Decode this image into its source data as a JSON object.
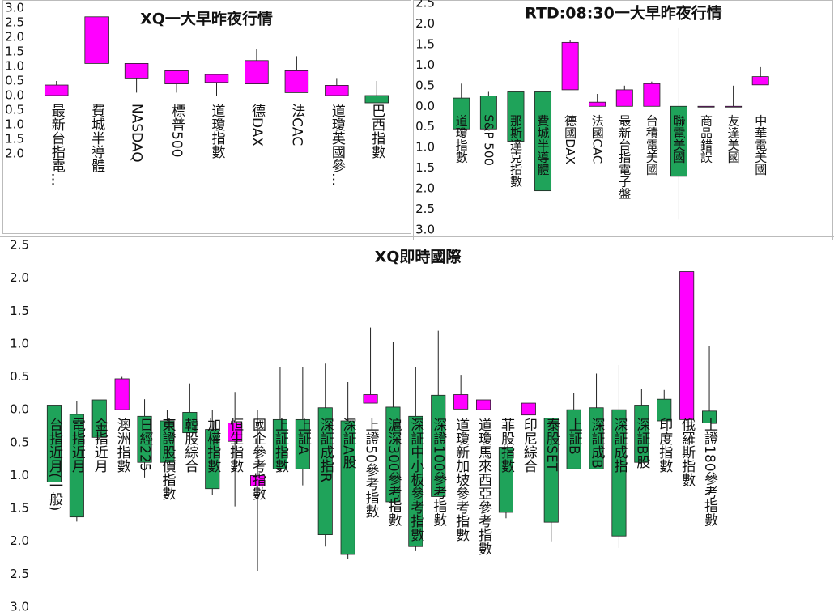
{
  "chart_data": [
    {
      "type": "candlestick",
      "title": "XQ一大早昨夜行情",
      "categories": [
        "最新台指電…",
        "費城半導體",
        "NASDAQ",
        "標普500",
        "道瓊指數",
        "德DAX",
        "法CAC",
        "道瓊英國參…",
        "巴西指數"
      ],
      "open": [
        0,
        1.1,
        0.6,
        0.4,
        0.45,
        0.4,
        0.1,
        0,
        0
      ],
      "close": [
        0.36,
        2.7,
        1.1,
        0.85,
        0.72,
        1.2,
        0.85,
        0.35,
        -0.25
      ],
      "high": [
        0.5,
        2.7,
        1.1,
        0.85,
        0.75,
        1.6,
        1.35,
        0.6,
        0.5
      ],
      "low": [
        0,
        1.1,
        0.1,
        0.1,
        0,
        0.4,
        0.1,
        0,
        -0.25
      ],
      "up_color": "#ff00ff",
      "down_color": "#1fa35a",
      "negative_label_color": "#e00000",
      "ylim": [
        -2,
        3
      ],
      "yticks": [
        {
          "value": -2,
          "label": "2.0"
        },
        {
          "value": -1.5,
          "label": "1.5"
        },
        {
          "value": -1,
          "label": "1.0"
        },
        {
          "value": -0.5,
          "label": "0.5"
        },
        {
          "value": 0,
          "label": "0.0"
        },
        0.5,
        {
          "value": 1,
          "label": "1.0"
        },
        1.5,
        {
          "value": 2,
          "label": "2.0"
        },
        2.5,
        {
          "value": 3,
          "label": "3.0"
        }
      ]
    },
    {
      "type": "candlestick",
      "title": "RTD:08:30一大早昨夜行情",
      "categories": [
        "道瓊指數",
        "S&P 500",
        "那斯達克指數",
        "費城半導體",
        "德國DAX",
        "法國CAC",
        "最新台指電子盤",
        "台積電美國",
        "聯電美國",
        "商品錯誤",
        "友達美國",
        "中華電美國"
      ],
      "open": [
        0.2,
        0.25,
        0.35,
        0.35,
        0.4,
        0,
        0,
        0,
        0,
        0,
        0,
        0.52
      ],
      "close": [
        -0.55,
        -0.55,
        -0.85,
        -2.05,
        1.55,
        0.1,
        0.4,
        0.55,
        -1.7,
        0,
        0,
        0.72
      ],
      "high": [
        0.55,
        0.35,
        0.35,
        0.35,
        1.6,
        0.3,
        0.5,
        0.6,
        1.9,
        0,
        0.5,
        0.95
      ],
      "low": [
        -0.55,
        -0.55,
        -0.85,
        -2.05,
        0.4,
        0,
        0,
        0,
        -2.75,
        0,
        0,
        0.52
      ],
      "up_color": "#ff00ff",
      "down_color": "#1fa35a",
      "negative_label_color": "#e00000",
      "ylim": [
        -3,
        2.5
      ],
      "yticks": [
        {
          "value": -3,
          "label": "3.0"
        },
        {
          "value": -2.5,
          "label": "2.5"
        },
        {
          "value": -2,
          "label": "2.0"
        },
        {
          "value": -1.5,
          "label": "1.5"
        },
        {
          "value": -1,
          "label": "1.0"
        },
        {
          "value": -0.5,
          "label": "0.5"
        },
        {
          "value": 0,
          "label": "0.0"
        },
        0.5,
        {
          "value": 1,
          "label": "1.0"
        },
        1.5,
        {
          "value": 2,
          "label": "2.0"
        },
        2.5
      ]
    },
    {
      "type": "candlestick",
      "title": "XQ即時國際",
      "categories": [
        "台指近月(一般)",
        "電指近月",
        "金指近月",
        "澳洲指數",
        "日經225",
        "東證股價指數",
        "韓股綜合",
        "加權指數",
        "恒生指數",
        "國企參考指數",
        "上証指數",
        "上証A",
        "深証成指R",
        "深証A股",
        "上證50參考指數",
        "滬深300參考指數",
        "深証中小板參考指數",
        "深證100參考指數",
        "道瓊新加坡參考指數",
        "道瓊馬來西亞參考指數",
        "菲股指數",
        "印尼綜合",
        "泰股SET",
        "上証B",
        "深証成B",
        "深証成指",
        "深証B股",
        "印度指數",
        "俄羅斯指數",
        "上證180參考指數"
      ],
      "open": [
        0.07,
        -0.07,
        0.15,
        0,
        -0.1,
        -0.17,
        -0.04,
        -0.3,
        -0.48,
        -1.16,
        -0.15,
        -0.15,
        0.03,
        -0.17,
        0.1,
        0.04,
        -0.1,
        0.22,
        0.01,
        0,
        -0.57,
        -0.08,
        -0.13,
        0,
        0.03,
        0,
        0.07,
        0.16,
        -0.15,
        -0.02
      ],
      "close": [
        -1.1,
        -1.63,
        -0.42,
        0.47,
        -0.8,
        -0.8,
        -0.35,
        -1.2,
        -0.2,
        -1.0,
        -0.9,
        -0.9,
        -1.9,
        -2.2,
        0.23,
        -1.4,
        -2.08,
        -1.32,
        0.23,
        0.15,
        -1.56,
        0.1,
        -1.71,
        -0.9,
        -0.9,
        -1.92,
        -0.8,
        -0.17,
        2.1,
        -0.2
      ],
      "high": [
        0.07,
        0.13,
        0.15,
        0.5,
        0.16,
        0,
        0.4,
        0,
        0.27,
        0,
        0.65,
        0.65,
        0.7,
        0.42,
        1.25,
        1.03,
        0.65,
        1.2,
        0.53,
        0.15,
        -0.57,
        0.1,
        -0.13,
        0.25,
        0.55,
        0.68,
        0.32,
        0.3,
        2.1,
        0.97
      ],
      "low": [
        -1.1,
        -1.7,
        -0.42,
        0,
        -1.03,
        -0.8,
        -0.35,
        -1.3,
        -1.47,
        -2.45,
        -0.95,
        -1.15,
        -2.08,
        -2.27,
        0.1,
        -1.4,
        -2.15,
        -1.32,
        0.01,
        0,
        -1.65,
        -0.08,
        -2.0,
        -0.9,
        -0.9,
        -2.1,
        -0.8,
        -0.17,
        -0.15,
        -0.2
      ],
      "up_color": "#ff00ff",
      "down_color": "#1fa35a",
      "negative_label_color": "#e00000",
      "ylim": [
        -3,
        2.5
      ],
      "yticks": [
        {
          "value": -3,
          "label": "3.0"
        },
        {
          "value": -2.5,
          "label": "2.5"
        },
        {
          "value": -2,
          "label": "2.0"
        },
        {
          "value": -1.5,
          "label": "1.5"
        },
        {
          "value": -1,
          "label": "1.0"
        },
        {
          "value": -0.5,
          "label": "0.5"
        },
        {
          "value": 0,
          "label": "0.0"
        },
        0.5,
        {
          "value": 1,
          "label": "1.0"
        },
        1.5,
        {
          "value": 2,
          "label": "2.0"
        },
        2.5
      ]
    }
  ]
}
